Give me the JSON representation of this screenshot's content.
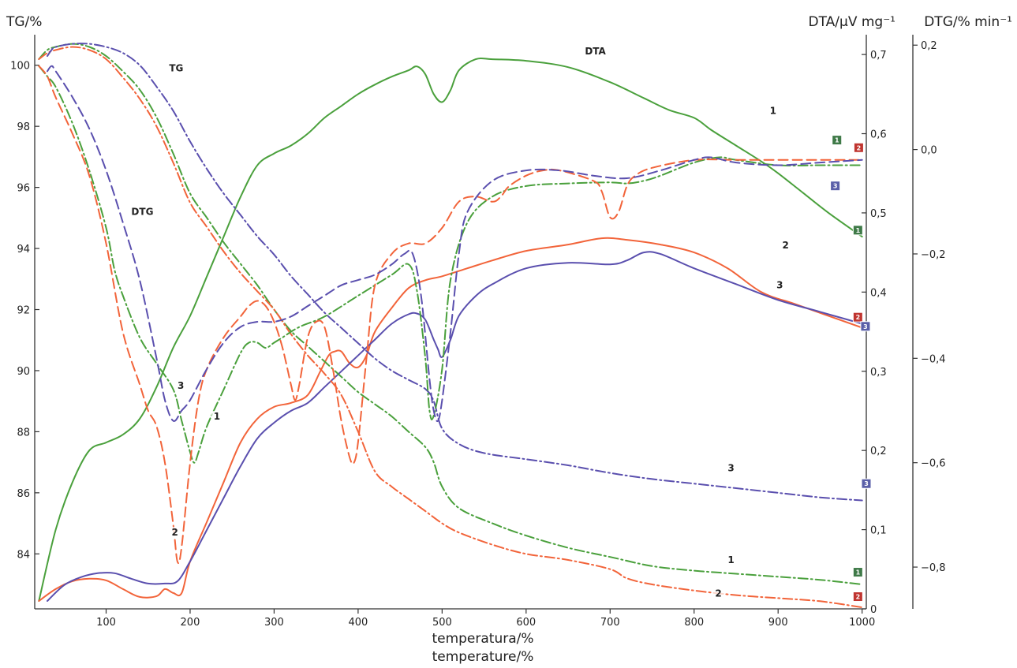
{
  "chart_data": {
    "type": "line",
    "axes": {
      "tg": {
        "label": "TG/%",
        "range": [
          82.2,
          101.0
        ],
        "ticks": [
          84,
          86,
          88,
          90,
          92,
          94,
          96,
          98,
          100
        ]
      },
      "dta": {
        "label": "DTA/μV mg⁻¹",
        "range": [
          0,
          0.725
        ],
        "ticks": [
          "0",
          "0,1",
          "0,2",
          "0,3",
          "0,4",
          "0,5",
          "0,6",
          "0,7"
        ],
        "tick_values": [
          0,
          0.1,
          0.2,
          0.3,
          0.4,
          0.5,
          0.6,
          0.7
        ]
      },
      "dtg": {
        "label": "DTG/% min⁻¹",
        "range": [
          -0.88,
          0.22
        ],
        "ticks": [
          "0,2",
          "0,0",
          "−0,2",
          "−0,4",
          "−0,6",
          "−0,8"
        ],
        "tick_values": [
          0.2,
          0.0,
          -0.2,
          -0.4,
          -0.6,
          -0.8
        ]
      },
      "x": {
        "label_line1": "temperatura/%",
        "label_line2": "temperature/%",
        "range": [
          15,
          1005
        ],
        "ticks": [
          100,
          200,
          300,
          400,
          500,
          600,
          700,
          800,
          900,
          1000
        ]
      }
    },
    "colors": {
      "1": "#4aa03c",
      "2": "#f2643a",
      "3": "#5a4fae",
      "marker_1": "#3f7a48",
      "marker_2": "#c03530",
      "marker_3": "#5a5fa8"
    },
    "series": [
      {
        "group": "DTA",
        "sample": "1",
        "axis": "dta",
        "style": "solid",
        "x": [
          20,
          40,
          60,
          80,
          100,
          120,
          140,
          160,
          180,
          200,
          220,
          240,
          260,
          280,
          300,
          320,
          340,
          360,
          380,
          400,
          420,
          440,
          460,
          470,
          480,
          490,
          500,
          510,
          520,
          540,
          560,
          600,
          650,
          700,
          740,
          770,
          800,
          820,
          850,
          880,
          900,
          930,
          960,
          1000
        ],
        "y": [
          0.01,
          0.1,
          0.16,
          0.2,
          0.21,
          0.22,
          0.24,
          0.28,
          0.33,
          0.37,
          0.42,
          0.47,
          0.52,
          0.56,
          0.575,
          0.585,
          0.6,
          0.62,
          0.635,
          0.65,
          0.662,
          0.672,
          0.68,
          0.685,
          0.675,
          0.65,
          0.64,
          0.655,
          0.68,
          0.694,
          0.694,
          0.692,
          0.684,
          0.665,
          0.645,
          0.63,
          0.62,
          0.605,
          0.585,
          0.565,
          0.55,
          0.525,
          0.5,
          0.47
        ]
      },
      {
        "group": "DTA",
        "sample": "2",
        "axis": "dta",
        "style": "solid",
        "x": [
          20,
          40,
          60,
          80,
          100,
          120,
          140,
          160,
          170,
          180,
          190,
          200,
          220,
          240,
          260,
          280,
          300,
          320,
          340,
          355,
          365,
          372,
          380,
          390,
          400,
          410,
          420,
          440,
          460,
          480,
          500,
          530,
          560,
          600,
          650,
          690,
          720,
          760,
          800,
          840,
          880,
          920,
          960,
          1000
        ],
        "y": [
          0.01,
          0.025,
          0.035,
          0.038,
          0.036,
          0.025,
          0.015,
          0.016,
          0.025,
          0.02,
          0.02,
          0.06,
          0.11,
          0.16,
          0.21,
          0.24,
          0.255,
          0.26,
          0.27,
          0.3,
          0.32,
          0.325,
          0.325,
          0.31,
          0.305,
          0.32,
          0.35,
          0.38,
          0.405,
          0.415,
          0.42,
          0.43,
          0.44,
          0.452,
          0.46,
          0.468,
          0.466,
          0.46,
          0.45,
          0.43,
          0.4,
          0.385,
          0.37,
          0.355
        ]
      },
      {
        "group": "DTA",
        "sample": "3",
        "axis": "dta",
        "style": "solid",
        "x": [
          30,
          50,
          70,
          90,
          110,
          130,
          150,
          170,
          185,
          200,
          220,
          240,
          260,
          280,
          300,
          320,
          340,
          360,
          380,
          400,
          420,
          440,
          460,
          470,
          480,
          490,
          495,
          500,
          510,
          520,
          540,
          560,
          600,
          650,
          700,
          720,
          740,
          760,
          800,
          850,
          900,
          950,
          1000
        ],
        "y": [
          0.01,
          0.03,
          0.04,
          0.045,
          0.045,
          0.038,
          0.032,
          0.032,
          0.035,
          0.06,
          0.1,
          0.14,
          0.18,
          0.215,
          0.235,
          0.25,
          0.26,
          0.28,
          0.3,
          0.32,
          0.34,
          0.36,
          0.372,
          0.373,
          0.365,
          0.34,
          0.328,
          0.318,
          0.34,
          0.37,
          0.395,
          0.41,
          0.43,
          0.437,
          0.435,
          0.44,
          0.45,
          0.448,
          0.43,
          0.41,
          0.39,
          0.375,
          0.36
        ]
      },
      {
        "group": "TG",
        "sample": "1",
        "axis": "tg",
        "style": "dash-dot",
        "x": [
          20,
          30,
          40,
          60,
          80,
          100,
          120,
          140,
          160,
          180,
          200,
          220,
          240,
          260,
          280,
          300,
          320,
          340,
          360,
          380,
          400,
          420,
          440,
          460,
          480,
          490,
          500,
          520,
          560,
          600,
          650,
          700,
          750,
          800,
          850,
          900,
          950,
          1000
        ],
        "y": [
          100.2,
          100.5,
          100.6,
          100.7,
          100.6,
          100.3,
          99.8,
          99.2,
          98.3,
          97.1,
          95.8,
          95.0,
          94.2,
          93.5,
          92.8,
          92.0,
          91.3,
          90.8,
          90.3,
          89.8,
          89.3,
          88.9,
          88.5,
          88.0,
          87.5,
          87.0,
          86.2,
          85.5,
          85.0,
          84.6,
          84.2,
          83.9,
          83.6,
          83.45,
          83.35,
          83.25,
          83.15,
          83.0
        ]
      },
      {
        "group": "TG",
        "sample": "2",
        "axis": "tg",
        "style": "dash-dot",
        "x": [
          20,
          30,
          40,
          60,
          80,
          100,
          120,
          140,
          160,
          180,
          200,
          220,
          240,
          260,
          280,
          300,
          320,
          340,
          360,
          380,
          400,
          420,
          440,
          460,
          480,
          500,
          520,
          560,
          600,
          650,
          700,
          720,
          750,
          800,
          850,
          900,
          950,
          1000
        ],
        "y": [
          100.2,
          100.4,
          100.5,
          100.6,
          100.5,
          100.2,
          99.6,
          98.9,
          98.0,
          96.8,
          95.5,
          94.7,
          93.9,
          93.2,
          92.6,
          92.0,
          91.2,
          90.5,
          89.9,
          89.2,
          88.0,
          86.7,
          86.2,
          85.8,
          85.4,
          85.0,
          84.7,
          84.3,
          84.0,
          83.8,
          83.5,
          83.2,
          83.0,
          82.8,
          82.65,
          82.55,
          82.45,
          82.25
        ]
      },
      {
        "group": "TG",
        "sample": "3",
        "axis": "tg",
        "style": "dash-dot",
        "x": [
          30,
          35,
          40,
          60,
          80,
          100,
          120,
          140,
          160,
          180,
          200,
          220,
          240,
          260,
          280,
          300,
          320,
          340,
          360,
          380,
          400,
          420,
          440,
          460,
          480,
          490,
          500,
          520,
          550,
          600,
          650,
          700,
          750,
          800,
          850,
          900,
          950,
          1000
        ],
        "y": [
          100.3,
          100.5,
          100.6,
          100.7,
          100.7,
          100.6,
          100.4,
          100.0,
          99.3,
          98.5,
          97.5,
          96.6,
          95.8,
          95.1,
          94.4,
          93.8,
          93.1,
          92.5,
          91.9,
          91.4,
          90.9,
          90.4,
          90.0,
          89.7,
          89.4,
          89.0,
          88.1,
          87.6,
          87.3,
          87.1,
          86.9,
          86.65,
          86.45,
          86.3,
          86.15,
          86.0,
          85.85,
          85.75
        ]
      },
      {
        "group": "DTG",
        "sample": "1",
        "axis": "dtg",
        "style": "dash-dot",
        "x": [
          20,
          30,
          40,
          60,
          80,
          100,
          110,
          120,
          140,
          160,
          180,
          190,
          200,
          205,
          210,
          220,
          240,
          260,
          270,
          280,
          290,
          300,
          310,
          330,
          360,
          400,
          440,
          460,
          470,
          480,
          485,
          490,
          500,
          510,
          530,
          560,
          600,
          650,
          700,
          720,
          740,
          760,
          800,
          830,
          850,
          900,
          950,
          1000
        ],
        "y": [
          0.16,
          0.14,
          0.12,
          0.05,
          -0.04,
          -0.15,
          -0.23,
          -0.28,
          -0.36,
          -0.41,
          -0.46,
          -0.52,
          -0.58,
          -0.6,
          -0.58,
          -0.53,
          -0.46,
          -0.39,
          -0.37,
          -0.37,
          -0.38,
          -0.37,
          -0.36,
          -0.34,
          -0.32,
          -0.28,
          -0.24,
          -0.22,
          -0.27,
          -0.4,
          -0.5,
          -0.51,
          -0.42,
          -0.25,
          -0.14,
          -0.09,
          -0.07,
          -0.065,
          -0.063,
          -0.065,
          -0.06,
          -0.05,
          -0.025,
          -0.015,
          -0.02,
          -0.03,
          -0.03,
          -0.03
        ]
      },
      {
        "group": "DTG",
        "sample": "2",
        "axis": "dtg",
        "style": "dash",
        "x": [
          20,
          30,
          40,
          60,
          80,
          100,
          120,
          140,
          150,
          160,
          170,
          180,
          185,
          190,
          200,
          210,
          220,
          240,
          260,
          270,
          280,
          290,
          300,
          310,
          320,
          325,
          330,
          340,
          350,
          360,
          370,
          380,
          390,
          395,
          400,
          410,
          420,
          440,
          460,
          480,
          500,
          520,
          540,
          560,
          570,
          580,
          600,
          620,
          640,
          680,
          690,
          700,
          710,
          720,
          730,
          750,
          800,
          850,
          900,
          950,
          1000
        ],
        "y": [
          0.16,
          0.14,
          0.1,
          0.03,
          -0.05,
          -0.18,
          -0.35,
          -0.45,
          -0.5,
          -0.53,
          -0.6,
          -0.72,
          -0.79,
          -0.76,
          -0.6,
          -0.48,
          -0.42,
          -0.36,
          -0.32,
          -0.3,
          -0.29,
          -0.3,
          -0.33,
          -0.38,
          -0.45,
          -0.48,
          -0.45,
          -0.36,
          -0.33,
          -0.34,
          -0.42,
          -0.52,
          -0.59,
          -0.6,
          -0.56,
          -0.4,
          -0.26,
          -0.2,
          -0.18,
          -0.18,
          -0.15,
          -0.1,
          -0.09,
          -0.1,
          -0.09,
          -0.07,
          -0.05,
          -0.04,
          -0.04,
          -0.06,
          -0.08,
          -0.13,
          -0.12,
          -0.07,
          -0.05,
          -0.035,
          -0.02,
          -0.02,
          -0.02,
          -0.02,
          -0.02
        ]
      },
      {
        "group": "DTG",
        "sample": "3",
        "axis": "dtg",
        "style": "dash",
        "x": [
          30,
          35,
          40,
          60,
          80,
          100,
          120,
          140,
          160,
          170,
          180,
          190,
          200,
          220,
          240,
          260,
          280,
          300,
          320,
          340,
          360,
          380,
          400,
          420,
          440,
          455,
          465,
          475,
          485,
          490,
          495,
          500,
          510,
          520,
          530,
          560,
          600,
          640,
          680,
          720,
          760,
          800,
          820,
          850,
          900,
          950,
          1000
        ],
        "y": [
          0.15,
          0.16,
          0.15,
          0.1,
          0.04,
          -0.04,
          -0.14,
          -0.25,
          -0.4,
          -0.48,
          -0.52,
          -0.5,
          -0.48,
          -0.42,
          -0.37,
          -0.34,
          -0.33,
          -0.33,
          -0.32,
          -0.3,
          -0.28,
          -0.26,
          -0.25,
          -0.24,
          -0.22,
          -0.2,
          -0.2,
          -0.28,
          -0.44,
          -0.5,
          -0.52,
          -0.48,
          -0.35,
          -0.2,
          -0.12,
          -0.06,
          -0.04,
          -0.04,
          -0.05,
          -0.055,
          -0.04,
          -0.02,
          -0.015,
          -0.025,
          -0.03,
          -0.025,
          -0.02
        ]
      }
    ],
    "annotations": [
      {
        "text": "DTA",
        "x": 670,
        "axis": "dta",
        "y": 0.7
      },
      {
        "text": "TG",
        "x": 175,
        "axis": "tg",
        "y": 99.8
      },
      {
        "text": "DTG",
        "x": 130,
        "axis": "tg",
        "y": 95.1
      },
      {
        "text": "1",
        "x": 890,
        "axis": "dta",
        "y": 0.625
      },
      {
        "text": "2",
        "x": 905,
        "axis": "dta",
        "y": 0.455
      },
      {
        "text": "3",
        "x": 898,
        "axis": "dta",
        "y": 0.405
      },
      {
        "text": "3",
        "x": 185,
        "axis": "tg",
        "y": 89.4
      },
      {
        "text": "1",
        "x": 228,
        "axis": "tg",
        "y": 88.4
      },
      {
        "text": "2",
        "x": 178,
        "axis": "tg",
        "y": 84.6
      },
      {
        "text": "3",
        "x": 840,
        "axis": "tg",
        "y": 86.7
      },
      {
        "text": "1",
        "x": 840,
        "axis": "tg",
        "y": 83.7
      },
      {
        "text": "2",
        "x": 825,
        "axis": "tg",
        "y": 82.6
      }
    ],
    "end_markers": [
      {
        "label": "1",
        "x": 970,
        "axis": "tg",
        "y": 97.55,
        "color": "marker_1"
      },
      {
        "label": "2",
        "x": 996,
        "axis": "tg",
        "y": 97.3,
        "color": "marker_2"
      },
      {
        "label": "3",
        "x": 968,
        "axis": "tg",
        "y": 96.05,
        "color": "marker_3"
      },
      {
        "label": "1",
        "x": 995,
        "axis": "tg",
        "y": 94.6,
        "color": "marker_1"
      },
      {
        "label": "2",
        "x": 995,
        "axis": "tg",
        "y": 91.75,
        "color": "marker_2"
      },
      {
        "label": "3",
        "x": 1004,
        "axis": "tg",
        "y": 91.45,
        "color": "marker_3"
      },
      {
        "label": "3",
        "x": 1005,
        "axis": "tg",
        "y": 86.3,
        "color": "marker_3"
      },
      {
        "label": "1",
        "x": 995,
        "axis": "tg",
        "y": 83.4,
        "color": "marker_1"
      },
      {
        "label": "2",
        "x": 995,
        "axis": "tg",
        "y": 82.6,
        "color": "marker_2"
      }
    ]
  }
}
